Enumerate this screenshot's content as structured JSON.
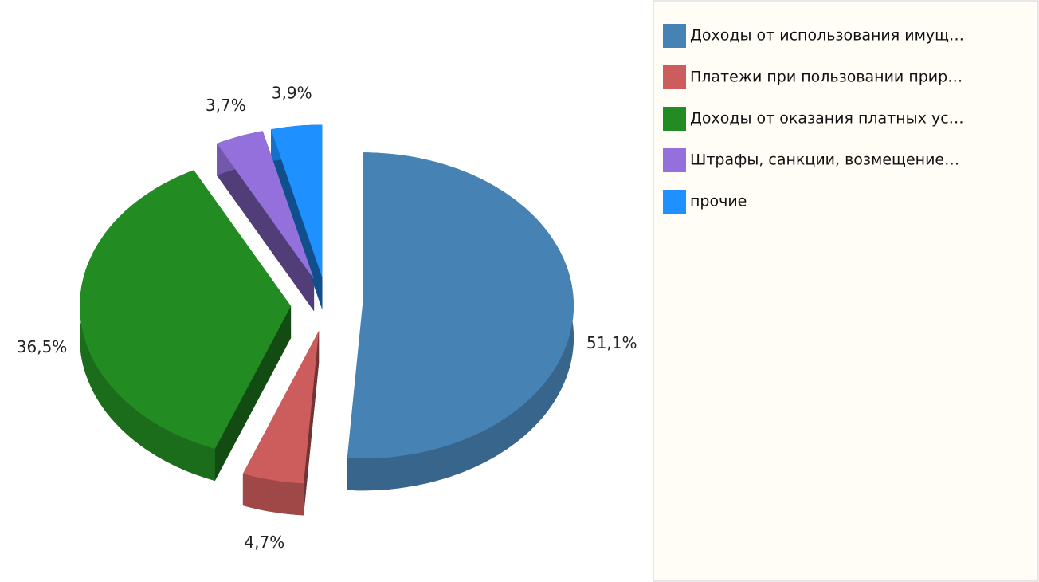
{
  "chart_data": {
    "type": "pie",
    "categories": [
      "Доходы от использования имущ…",
      "Платежи при пользовании прир…",
      "Доходы от оказания платных ус…",
      "Штрафы, санкции, возмещение…",
      "прочие"
    ],
    "values": [
      51.1,
      4.7,
      36.5,
      3.7,
      3.9
    ],
    "value_labels": [
      "51,1%",
      "4,7%",
      "36,5%",
      "3,7%",
      "3,9%"
    ],
    "colors": [
      "#4682b4",
      "#cd5c5c",
      "#228b22",
      "#9370db",
      "#1e90ff"
    ],
    "legend": "right"
  }
}
